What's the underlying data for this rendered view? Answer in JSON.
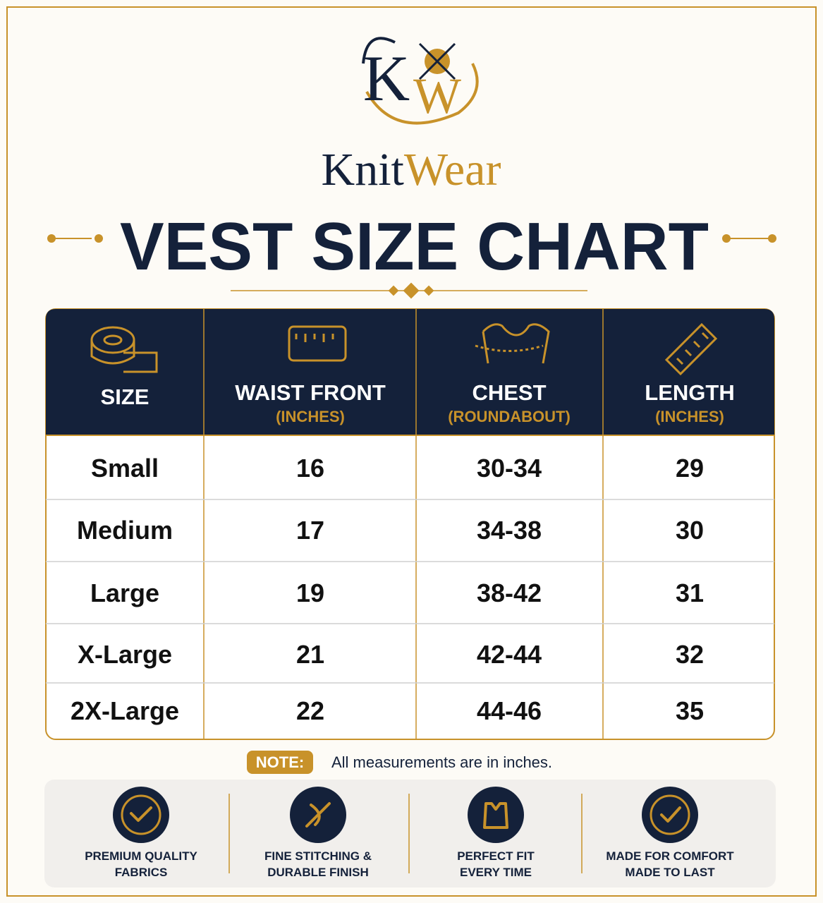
{
  "logo": {
    "initials": [
      "K",
      "W"
    ]
  },
  "brand": {
    "first": "Knit",
    "second": "Wear"
  },
  "title": "VEST SIZE CHART",
  "table": {
    "header": [
      {
        "label": "SIZE"
      },
      {
        "label": "WAIST FRONT",
        "sub": "(INCHES)"
      },
      {
        "label": "CHEST",
        "sub": "(ROUNDABOUT)"
      },
      {
        "label": "LENGTH",
        "sub": "(INCHES)"
      }
    ],
    "rows": [
      [
        "Small",
        "16",
        "30-34",
        "29"
      ],
      [
        "Medium",
        "17",
        "34-38",
        "30"
      ],
      [
        "Large",
        "19",
        "38-42",
        "31"
      ],
      [
        "X-Large",
        "21",
        "42-44",
        "32"
      ],
      [
        "2X-Large",
        "22",
        "44-46",
        "35"
      ]
    ]
  },
  "note": {
    "label": "NOTE:",
    "text": "All measurements are in inches."
  },
  "features": [
    {
      "lines": [
        "PREMIUM QUALITY",
        "FABRICS"
      ]
    },
    {
      "lines": [
        "FINE STITCHING &",
        "DURABLE FINISH"
      ]
    },
    {
      "lines": [
        "PERFECT FIT",
        "EVERY TIME"
      ]
    },
    {
      "lines": [
        "MADE FOR COMFORT",
        "MADE TO LAST"
      ]
    }
  ]
}
